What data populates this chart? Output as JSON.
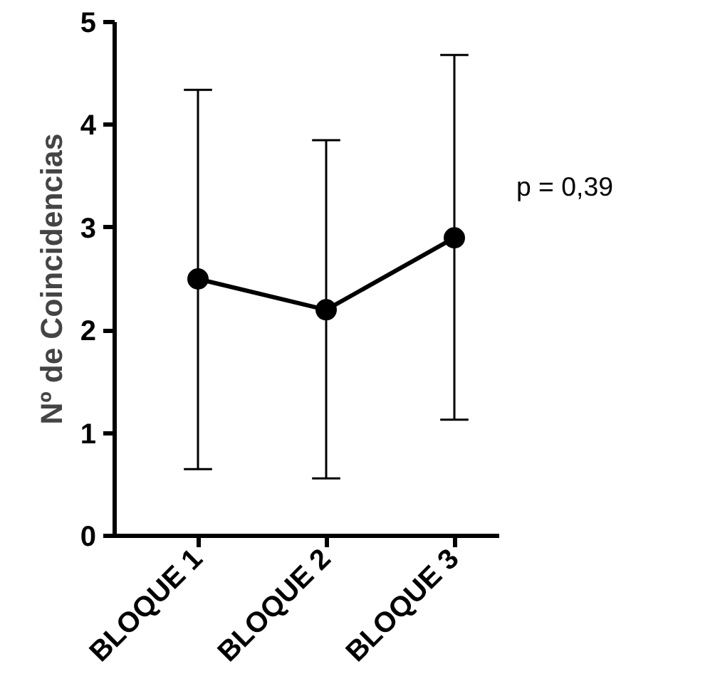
{
  "chart_data": {
    "type": "line",
    "ylabel": "Nº de Coincidencias",
    "categories": [
      "BLOQUE 1",
      "BLOQUE 2",
      "BLOQUE 3"
    ],
    "series": [
      {
        "color": "#000000",
        "values": [
          2.5,
          2.2,
          2.9
        ],
        "errors": [
          [
            0.65,
            4.34
          ],
          [
            0.56,
            3.85
          ],
          [
            1.13,
            4.68
          ]
        ]
      }
    ],
    "ylim": [
      0,
      5
    ],
    "yticks": [
      0,
      1,
      2,
      3,
      4,
      5
    ],
    "grid": false,
    "marker": "circle",
    "line_style": "solid",
    "annotations": [
      "p = 0,39"
    ]
  }
}
